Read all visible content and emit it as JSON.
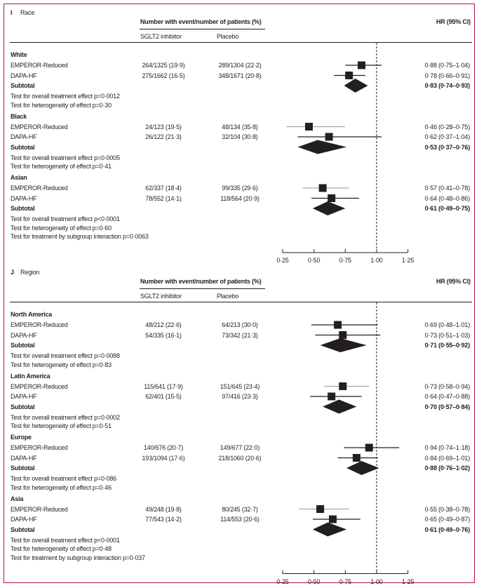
{
  "chart_data": {
    "type": "forest",
    "reference_line": 1.0,
    "xlim": [
      0.25,
      1.25
    ],
    "xticks": [
      0.25,
      0.5,
      0.75,
      1.0,
      1.25
    ],
    "xtick_labels": [
      "0·25",
      "0·50",
      "0·75",
      "1·00",
      "1·25"
    ],
    "panels": [
      {
        "letter": "I",
        "title": "Race",
        "header": "Number with event/number of patients (%)",
        "col_treatment": "SGLT2 inhibitor",
        "col_placebo": "Placebo",
        "col_hr": "HR (95% CI)",
        "groups": [
          {
            "name": "White",
            "studies": [
              {
                "name": "EMPEROR-Reduced",
                "treatment": "264/1325 (19·9)",
                "placebo": "289/1304 (22·2)",
                "hr": 0.88,
                "lo": 0.75,
                "hi": 1.04,
                "hr_text": "0·88 (0·75–1·04)",
                "ci_color": "#231f20"
              },
              {
                "name": "DAPA-HF",
                "treatment": "275/1662 (16·5)",
                "placebo": "348/1671 (20·8)",
                "hr": 0.78,
                "lo": 0.66,
                "hi": 0.91,
                "hr_text": "0·78 (0·66–0·91)",
                "ci_color": "#231f20"
              }
            ],
            "subtotal": {
              "label": "Subtotal",
              "hr": 0.83,
              "lo": 0.74,
              "hi": 0.93,
              "hr_text": "0·83 (0·74–0·93)"
            },
            "tests": [
              "Test for overall treatment effect p=0·0012",
              "Test for heterogeneity of effect p=0·30"
            ]
          },
          {
            "name": "Black",
            "studies": [
              {
                "name": "EMPEROR-Reduced",
                "treatment": "24/123 (19·5)",
                "placebo": "48/134 (35·8)",
                "hr": 0.46,
                "lo": 0.28,
                "hi": 0.75,
                "hr_text": "0·46 (0·28–0·75)",
                "ci_color": "#a7a9ac"
              },
              {
                "name": "DAPA-HF",
                "treatment": "26/122 (21·3)",
                "placebo": "32/104 (30·8)",
                "hr": 0.62,
                "lo": 0.37,
                "hi": 1.04,
                "hr_text": "0·62 (0·37–1·04)",
                "ci_color": "#231f20"
              }
            ],
            "subtotal": {
              "label": "Subtotal",
              "hr": 0.53,
              "lo": 0.37,
              "hi": 0.76,
              "hr_text": "0·53 (0·37–0·76)"
            },
            "tests": [
              "Test for overall treatment effect p=0·0005",
              "Test for heterogeneity of effect p=0·41"
            ]
          },
          {
            "name": "Asian",
            "studies": [
              {
                "name": "EMPEROR-Reduced",
                "treatment": "62/337 (18·4)",
                "placebo": "99/335 (29·6)",
                "hr": 0.57,
                "lo": 0.41,
                "hi": 0.78,
                "hr_text": "0·57 (0·41–0·78)",
                "ci_color": "#a7a9ac"
              },
              {
                "name": "DAPA-HF",
                "treatment": "78/552 (14·1)",
                "placebo": "118/564 (20·9)",
                "hr": 0.64,
                "lo": 0.48,
                "hi": 0.86,
                "hr_text": "0·64 (0·48–0·86)",
                "ci_color": "#231f20"
              }
            ],
            "subtotal": {
              "label": "Subtotal",
              "hr": 0.61,
              "lo": 0.49,
              "hi": 0.75,
              "hr_text": "0·61 (0·49–0·75)"
            },
            "tests": [
              "Test for overall treatment effect p<0·0001",
              "Test for heterogeneity of effect p=0·60",
              "Test for treatment by subgroup interaction p=0·0063"
            ]
          }
        ]
      },
      {
        "letter": "J",
        "title": "Region",
        "header": "Number with event/number of patients (%)",
        "col_treatment": "SGLT2 inhibitor",
        "col_placebo": "Placebo",
        "col_hr": "HR (95% CI)",
        "groups": [
          {
            "name": "North America",
            "studies": [
              {
                "name": "EMPEROR-Reduced",
                "treatment": "48/212 (22·6)",
                "placebo": "64/213 (30·0)",
                "hr": 0.69,
                "lo": 0.48,
                "hi": 1.01,
                "hr_text": "0·69 (0·48–1·01)",
                "ci_color": "#231f20"
              },
              {
                "name": "DAPA-HF",
                "treatment": "54/335 (16·1)",
                "placebo": "73/342 (21·3)",
                "hr": 0.73,
                "lo": 0.51,
                "hi": 1.03,
                "hr_text": "0·73 (0·51–1·03)",
                "ci_color": "#231f20"
              }
            ],
            "subtotal": {
              "label": "Subtotal",
              "hr": 0.71,
              "lo": 0.55,
              "hi": 0.92,
              "hr_text": "0·71 (0·55–0·92)"
            },
            "tests": [
              "Test for overall treatment effect p=0·0088",
              "Test for heterogeneity of effect p=0·83"
            ]
          },
          {
            "name": "Latin America",
            "studies": [
              {
                "name": "EMPEROR-Reduced",
                "treatment": "115/641 (17·9)",
                "placebo": "151/645 (23·4)",
                "hr": 0.73,
                "lo": 0.58,
                "hi": 0.94,
                "hr_text": "0·73 (0·58–0·94)",
                "ci_color": "#a7a9ac"
              },
              {
                "name": "DAPA-HF",
                "treatment": "62/401 (15·5)",
                "placebo": "97/416 (23·3)",
                "hr": 0.64,
                "lo": 0.47,
                "hi": 0.88,
                "hr_text": "0·64 (0·47–0·88)",
                "ci_color": "#231f20"
              }
            ],
            "subtotal": {
              "label": "Subtotal",
              "hr": 0.7,
              "lo": 0.57,
              "hi": 0.84,
              "hr_text": "0·70 (0·57–0·84)"
            },
            "tests": [
              "Test for overall treatment effect p=0·0002",
              "Test for heterogeneity of effect p=0·51"
            ]
          },
          {
            "name": "Europe",
            "studies": [
              {
                "name": "EMPEROR-Reduced",
                "treatment": "140/676 (20·7)",
                "placebo": "149/677 (22·0)",
                "hr": 0.94,
                "lo": 0.74,
                "hi": 1.18,
                "hr_text": "0·94 (0·74–1·18)",
                "ci_color": "#231f20"
              },
              {
                "name": "DAPA-HF",
                "treatment": "193/1094 (17·6)",
                "placebo": "218/1060 (20·6)",
                "hr": 0.84,
                "lo": 0.69,
                "hi": 1.01,
                "hr_text": "0·84 (0·69–1·01)",
                "ci_color": "#231f20"
              }
            ],
            "subtotal": {
              "label": "Subtotal",
              "hr": 0.88,
              "lo": 0.76,
              "hi": 1.02,
              "hr_text": "0·88 (0·76–1·02)"
            },
            "tests": [
              "Test for overall treatment effect p=0·086",
              "Test for heterogeneity of effect p=0·46"
            ]
          },
          {
            "name": "Asia",
            "studies": [
              {
                "name": "EMPEROR-Reduced",
                "treatment": "49/248 (19·8)",
                "placebo": "80/245 (32·7)",
                "hr": 0.55,
                "lo": 0.38,
                "hi": 0.78,
                "hr_text": "0·55 (0·38–0·78)",
                "ci_color": "#a7a9ac"
              },
              {
                "name": "DAPA-HF",
                "treatment": "77/543 (14·2)",
                "placebo": "114/553 (20·6)",
                "hr": 0.65,
                "lo": 0.49,
                "hi": 0.87,
                "hr_text": "0·65 (0·49–0·87)",
                "ci_color": "#231f20"
              }
            ],
            "subtotal": {
              "label": "Subtotal",
              "hr": 0.61,
              "lo": 0.49,
              "hi": 0.76,
              "hr_text": "0·61 (0·49–0·76)"
            },
            "tests": [
              "Test for overall treatment effect p<0·0001",
              "Test for heterogeneity of effect p=0·48",
              "Test for treatment by subgroup interaction p=0·037"
            ]
          }
        ]
      }
    ]
  }
}
